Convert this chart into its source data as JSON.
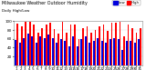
{
  "title": "Milwaukee Weather Outdoor Humidity",
  "subtitle": "Daily High/Low",
  "bar_width": 0.42,
  "background_color": "#ffffff",
  "high_color": "#ff0000",
  "low_color": "#0000dd",
  "legend_high": "High",
  "legend_low": "Low",
  "ylim": [
    0,
    100
  ],
  "yticks": [
    20,
    40,
    60,
    80,
    100
  ],
  "categories": [
    "1",
    "2",
    "3",
    "4",
    "5",
    "6",
    "7",
    "8",
    "9",
    "10",
    "11",
    "12",
    "13",
    "14",
    "15",
    "16",
    "17",
    "18",
    "19",
    "20",
    "21",
    "22",
    "23",
    "24",
    "25",
    "26",
    "27",
    "28",
    "29",
    "30",
    "31"
  ],
  "high_values": [
    95,
    88,
    99,
    98,
    92,
    75,
    85,
    93,
    96,
    82,
    72,
    98,
    75,
    92,
    92,
    60,
    85,
    88,
    75,
    80,
    88,
    92,
    78,
    96,
    96,
    98,
    65,
    92,
    85,
    75,
    85
  ],
  "low_values": [
    58,
    52,
    62,
    72,
    65,
    52,
    65,
    62,
    70,
    62,
    52,
    60,
    55,
    42,
    65,
    42,
    60,
    65,
    52,
    55,
    62,
    55,
    52,
    60,
    62,
    60,
    35,
    55,
    55,
    52,
    60
  ],
  "title_fontsize": 3.5,
  "subtitle_fontsize": 3.0,
  "tick_fontsize": 3.0,
  "legend_fontsize": 2.8
}
